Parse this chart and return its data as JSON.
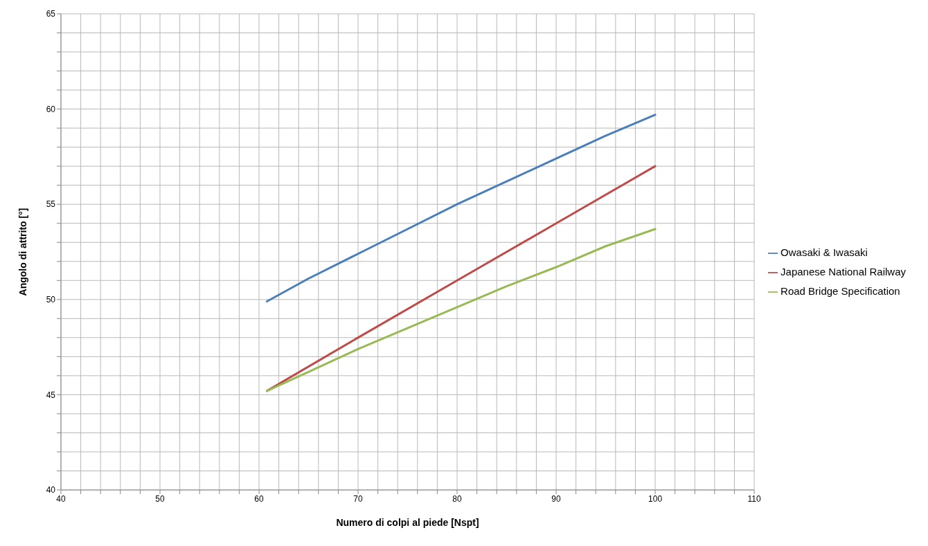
{
  "chart_data": {
    "type": "line",
    "xlabel": "Numero di colpi al piede [Nspt]",
    "ylabel": "Angolo di attrito [°]",
    "xlim": [
      40,
      110
    ],
    "ylim": [
      40,
      65
    ],
    "xticks": [
      40,
      {
        "value": 42,
        "label": null
      },
      {
        "value": 44,
        "label": null
      },
      {
        "value": 46,
        "label": null
      },
      {
        "value": 48,
        "label": null
      },
      50,
      {
        "value": 52,
        "label": null
      },
      {
        "value": 54,
        "label": null
      },
      {
        "value": 56,
        "label": null
      },
      {
        "value": 58,
        "label": null
      },
      60,
      {
        "value": 62,
        "label": null
      },
      {
        "value": 64,
        "label": null
      },
      {
        "value": 66,
        "label": null
      },
      {
        "value": 68,
        "label": null
      },
      70,
      {
        "value": 72,
        "label": null
      },
      {
        "value": 74,
        "label": null
      },
      {
        "value": 76,
        "label": null
      },
      {
        "value": 78,
        "label": null
      },
      80,
      {
        "value": 82,
        "label": null
      },
      {
        "value": 84,
        "label": null
      },
      {
        "value": 86,
        "label": null
      },
      {
        "value": 88,
        "label": null
      },
      90,
      {
        "value": 92,
        "label": null
      },
      {
        "value": 94,
        "label": null
      },
      {
        "value": 96,
        "label": null
      },
      {
        "value": 98,
        "label": null
      },
      100,
      {
        "value": 102,
        "label": null
      },
      {
        "value": 104,
        "label": null
      },
      {
        "value": 106,
        "label": null
      },
      {
        "value": 108,
        "label": null
      },
      110
    ],
    "yticks": [
      40,
      {
        "value": 41,
        "label": null
      },
      {
        "value": 42,
        "label": null
      },
      {
        "value": 43,
        "label": null
      },
      {
        "value": 44,
        "label": null
      },
      45,
      {
        "value": 46,
        "label": null
      },
      {
        "value": 47,
        "label": null
      },
      {
        "value": 48,
        "label": null
      },
      {
        "value": 49,
        "label": null
      },
      50,
      {
        "value": 51,
        "label": null
      },
      {
        "value": 52,
        "label": null
      },
      {
        "value": 53,
        "label": null
      },
      {
        "value": 54,
        "label": null
      },
      55,
      {
        "value": 56,
        "label": null
      },
      {
        "value": 57,
        "label": null
      },
      {
        "value": 58,
        "label": null
      },
      {
        "value": 59,
        "label": null
      },
      60,
      {
        "value": 61,
        "label": null
      },
      {
        "value": 62,
        "label": null
      },
      {
        "value": 63,
        "label": null
      },
      {
        "value": 64,
        "label": null
      },
      65
    ],
    "grid": true,
    "legend": "right",
    "series": [
      {
        "name": "Owasaki & Iwasaki",
        "color": "#4a7ebb",
        "x": [
          60.8,
          65,
          70,
          75,
          80,
          85,
          90,
          95,
          100
        ],
        "values": [
          49.9,
          51.1,
          52.4,
          53.7,
          55.0,
          56.2,
          57.4,
          58.6,
          59.7
        ]
      },
      {
        "name": "Japanese National Railway",
        "color": "#be4b48",
        "x": [
          60.8,
          70,
          80,
          90,
          100
        ],
        "values": [
          45.2,
          48.0,
          51.0,
          54.0,
          57.0
        ]
      },
      {
        "name": "Road Bridge Specification",
        "color": "#98b954",
        "x": [
          60.8,
          65,
          70,
          75,
          80,
          85,
          90,
          95,
          100
        ],
        "values": [
          45.2,
          46.2,
          47.4,
          48.5,
          49.6,
          50.7,
          51.7,
          52.8,
          53.7
        ]
      }
    ]
  }
}
